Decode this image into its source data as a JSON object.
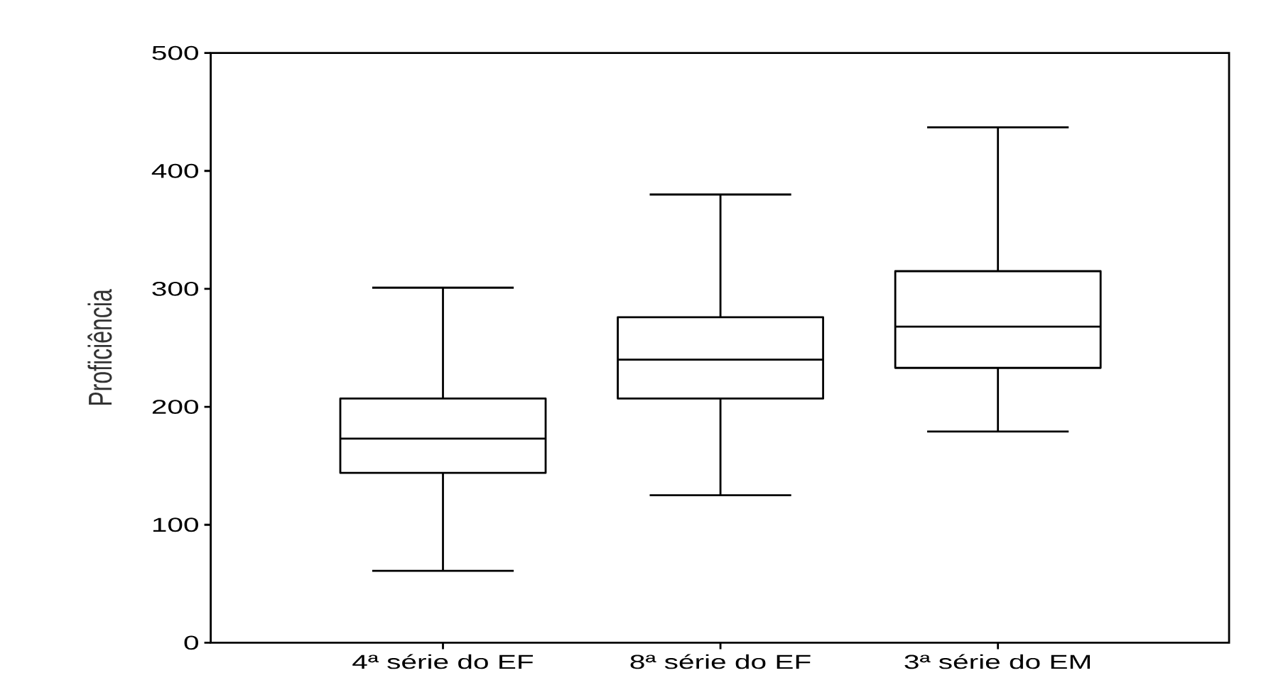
{
  "chart_data": {
    "type": "box",
    "ylabel": "Proficiência",
    "categories": [
      "4ª série do EF",
      "8ª série do EF",
      "3ª série do EM"
    ],
    "boxes": [
      {
        "low": 61,
        "q1": 144,
        "median": 173,
        "q3": 207,
        "high": 301
      },
      {
        "low": 125,
        "q1": 207,
        "median": 240,
        "q3": 276,
        "high": 380
      },
      {
        "low": 179,
        "q1": 233,
        "median": 268,
        "q3": 315,
        "high": 437
      }
    ],
    "ylim": [
      0,
      500
    ],
    "yticks": [
      0,
      100,
      200,
      300,
      400,
      500
    ]
  }
}
